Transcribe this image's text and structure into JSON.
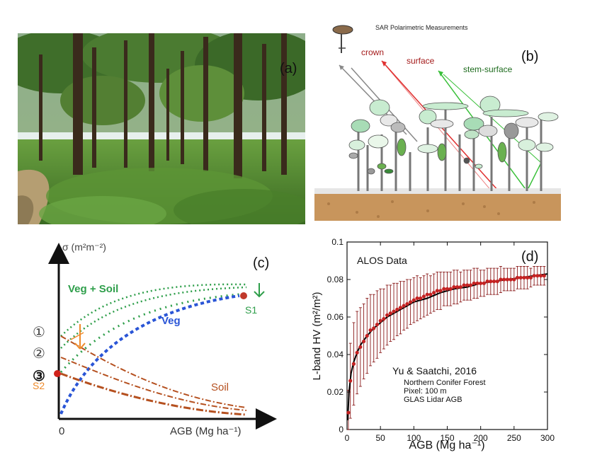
{
  "panel_a": {
    "label": "(a)"
  },
  "panel_b": {
    "title": "SAR Polarimetric Measurements",
    "label": "(b)",
    "mech_crown": "crown",
    "mech_surface": "surface",
    "mech_stem": "stem-surface"
  },
  "panel_c": {
    "label": "(c)",
    "yaxis": "σ (m²m⁻²)",
    "xaxis": "AGB (Mg ha⁻¹)",
    "zero": "0",
    "veg_soil": "Veg + Soil",
    "veg": "Veg",
    "soil": "Soil",
    "s1": "S1",
    "s2": "S2",
    "m1": "①",
    "m2": "②",
    "m3": "③",
    "colors": {
      "veg_soil": "#2e9e4a",
      "veg": "#2a55d6",
      "soil": "#b5501f",
      "arrow_orange": "#ee8a2a"
    }
  },
  "chart_data": {
    "type": "scatter",
    "title": "ALOS Data",
    "panel_label": "(d)",
    "xlabel": "AGB (Mg ha⁻¹)",
    "ylabel": "L-band HV (m²/m²)",
    "xlim": [
      0,
      300
    ],
    "ylim": [
      0,
      0.1
    ],
    "xticks": [
      "0",
      "50",
      "100",
      "150",
      "200",
      "250",
      "300"
    ],
    "yticks": [
      "0",
      "0.02",
      "0.04",
      "0.06",
      "0.08",
      "0.1"
    ],
    "annotation_title": "Yu & Saatchi, 2016",
    "annotation_lines": [
      "Northern Conifer Forest",
      "Pixel: 100 m",
      "GLAS Lidar AGB"
    ],
    "points": {
      "x": [
        2,
        5,
        10,
        15,
        20,
        25,
        30,
        35,
        40,
        45,
        50,
        55,
        60,
        65,
        70,
        75,
        80,
        85,
        90,
        95,
        100,
        105,
        110,
        115,
        120,
        125,
        130,
        135,
        140,
        145,
        150,
        155,
        160,
        165,
        170,
        175,
        180,
        185,
        190,
        195,
        200,
        205,
        210,
        215,
        220,
        225,
        230,
        235,
        240,
        245,
        250,
        255,
        260,
        265,
        270,
        275,
        280,
        285,
        290,
        295
      ],
      "y": [
        0.009,
        0.026,
        0.035,
        0.041,
        0.044,
        0.047,
        0.05,
        0.053,
        0.054,
        0.056,
        0.058,
        0.059,
        0.061,
        0.062,
        0.063,
        0.064,
        0.065,
        0.066,
        0.067,
        0.068,
        0.069,
        0.07,
        0.07,
        0.071,
        0.072,
        0.072,
        0.073,
        0.074,
        0.074,
        0.075,
        0.075,
        0.075,
        0.076,
        0.076,
        0.076,
        0.077,
        0.077,
        0.077,
        0.078,
        0.078,
        0.078,
        0.078,
        0.079,
        0.079,
        0.079,
        0.079,
        0.08,
        0.08,
        0.08,
        0.08,
        0.08,
        0.081,
        0.081,
        0.081,
        0.081,
        0.081,
        0.082,
        0.082,
        0.082,
        0.082
      ],
      "err": [
        0.012,
        0.02,
        0.022,
        0.022,
        0.021,
        0.02,
        0.02,
        0.019,
        0.018,
        0.018,
        0.017,
        0.016,
        0.016,
        0.015,
        0.015,
        0.014,
        0.014,
        0.013,
        0.013,
        0.012,
        0.012,
        0.012,
        0.011,
        0.011,
        0.011,
        0.01,
        0.01,
        0.01,
        0.01,
        0.009,
        0.009,
        0.009,
        0.009,
        0.009,
        0.008,
        0.008,
        0.008,
        0.008,
        0.008,
        0.008,
        0.007,
        0.007,
        0.007,
        0.007,
        0.007,
        0.007,
        0.007,
        0.006,
        0.006,
        0.006,
        0.006,
        0.006,
        0.006,
        0.006,
        0.006,
        0.005,
        0.005,
        0.005,
        0.005,
        0.005
      ]
    },
    "fit": {
      "x": [
        1,
        3,
        6,
        10,
        15,
        20,
        30,
        40,
        50,
        60,
        70,
        80,
        90,
        100,
        120,
        140,
        160,
        180,
        200,
        220,
        240,
        260,
        280,
        300
      ],
      "y": [
        0.005,
        0.02,
        0.03,
        0.036,
        0.041,
        0.045,
        0.05,
        0.054,
        0.057,
        0.06,
        0.062,
        0.064,
        0.066,
        0.068,
        0.07,
        0.073,
        0.075,
        0.076,
        0.078,
        0.079,
        0.08,
        0.081,
        0.082,
        0.083
      ]
    },
    "colors": {
      "points": "#c42222",
      "errorbars": "#8a1c1c",
      "fit": "#000000"
    }
  }
}
